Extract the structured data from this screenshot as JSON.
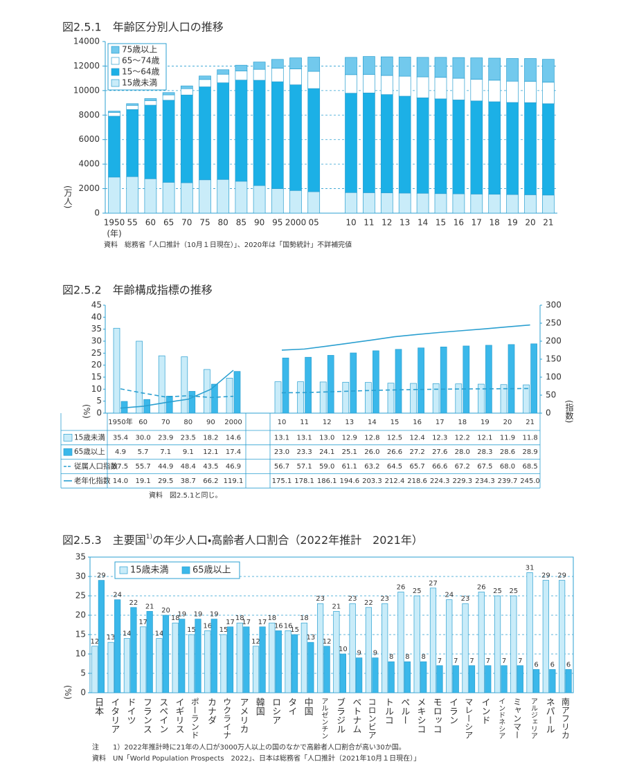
{
  "chart_data": [
    {
      "type": "bar",
      "stacked": true,
      "title": "図2.5.1　年齢区分別人口の推移",
      "ylabel": "(万人)",
      "xlabel": "(年)",
      "categories": [
        "1950",
        "55",
        "60",
        "65",
        "70",
        "75",
        "80",
        "85",
        "90",
        "95",
        "2000",
        "05",
        "10",
        "11",
        "12",
        "13",
        "14",
        "15",
        "16",
        "17",
        "18",
        "19",
        "20",
        "21"
      ],
      "series": [
        {
          "name": "15歳未満",
          "color": "#c9ecf9",
          "values": [
            2943,
            2980,
            2807,
            2517,
            2482,
            2722,
            2751,
            2603,
            2249,
            2001,
            1847,
            1752,
            1680,
            1671,
            1655,
            1639,
            1623,
            1595,
            1578,
            1559,
            1542,
            1521,
            1503,
            1478
          ]
        },
        {
          "name": "15～64歳",
          "color": "#1cb0e6",
          "values": [
            4966,
            5473,
            6000,
            6693,
            7157,
            7581,
            7883,
            8251,
            8590,
            8717,
            8622,
            8409,
            8103,
            8134,
            8018,
            7901,
            7785,
            7728,
            7656,
            7596,
            7545,
            7507,
            7509,
            7450
          ]
        },
        {
          "name": "65～74歳",
          "color": "#ffffff",
          "values": [
            309,
            339,
            375,
            437,
            516,
            602,
            699,
            744,
            892,
            1109,
            1301,
            1407,
            1517,
            1504,
            1560,
            1630,
            1708,
            1755,
            1768,
            1767,
            1760,
            1740,
            1742,
            1754
          ]
        },
        {
          "name": "75歳以上",
          "color": "#72c9ed",
          "values": [
            106,
            139,
            163,
            189,
            224,
            284,
            366,
            471,
            597,
            717,
            900,
            1160,
            1407,
            1471,
            1519,
            1560,
            1592,
            1632,
            1691,
            1748,
            1798,
            1849,
            1860,
            1867
          ]
        }
      ],
      "ylim": [
        0,
        14000
      ],
      "yticks": [
        0,
        2000,
        4000,
        6000,
        8000,
        10000,
        12000,
        14000
      ],
      "grid": true,
      "legend": "upper left",
      "source": "資料　総務省「人口推計（10月１日現在）」、2020年は「国勢統計」不詳補完値"
    },
    {
      "type": "bar",
      "title": "図2.5.2　年齢構成指標の推移",
      "ylabel": "(%)",
      "y2label": "(指数)",
      "categories": [
        "1950年",
        "60",
        "70",
        "80",
        "90",
        "2000",
        "10",
        "11",
        "12",
        "13",
        "14",
        "15",
        "16",
        "17",
        "18",
        "19",
        "20",
        "21"
      ],
      "series": [
        {
          "name": "15歳未満",
          "color": "#c9ecf9",
          "values": [
            35.4,
            30.0,
            23.9,
            23.5,
            18.2,
            14.6,
            13.1,
            13.1,
            13.0,
            12.9,
            12.8,
            12.5,
            12.4,
            12.3,
            12.2,
            12.1,
            11.9,
            11.8
          ],
          "value_labels": [
            "35.4",
            "30.0",
            "23.9",
            "23.5",
            "18.2",
            "14.6",
            "13.1",
            "13.1",
            "13.0",
            "12.9",
            "12.8",
            "12.5",
            "12.4",
            "12.3",
            "12.2",
            "12.1",
            "11.9",
            "11.8"
          ]
        },
        {
          "name": "65歳以上",
          "color": "#3bb8ea",
          "values": [
            4.9,
            5.7,
            7.1,
            9.1,
            12.1,
            17.4,
            23.0,
            23.3,
            24.1,
            25.1,
            26.0,
            26.6,
            27.2,
            27.6,
            28.0,
            28.3,
            28.6,
            28.9
          ],
          "value_labels": [
            "4.9",
            "5.7",
            "7.1",
            "9.1",
            "12.1",
            "17.4",
            "23.0",
            "23.3",
            "24.1",
            "25.1",
            "26.0",
            "26.6",
            "27.2",
            "27.6",
            "28.0",
            "28.3",
            "28.6",
            "28.9"
          ]
        },
        {
          "name": "従属人口指数",
          "type": "line",
          "dash": true,
          "axis": "y2",
          "color": "#2a9fd0",
          "values": [
            67.5,
            55.7,
            44.9,
            48.4,
            43.5,
            46.9,
            56.7,
            57.1,
            59.0,
            61.1,
            63.2,
            64.5,
            65.7,
            66.6,
            67.2,
            67.5,
            68.0,
            68.5
          ],
          "value_labels": [
            "67.5",
            "55.7",
            "44.9",
            "48.4",
            "43.5",
            "46.9",
            "56.7",
            "57.1",
            "59.0",
            "61.1",
            "63.2",
            "64.5",
            "65.7",
            "66.6",
            "67.2",
            "67.5",
            "68.0",
            "68.5"
          ]
        },
        {
          "name": "老年化指数",
          "type": "line",
          "axis": "y2",
          "color": "#2a9fd0",
          "values": [
            14.0,
            19.1,
            29.5,
            38.7,
            66.2,
            119.1,
            175.1,
            178.1,
            186.1,
            194.6,
            203.3,
            212.4,
            218.6,
            224.3,
            229.3,
            234.3,
            239.7,
            245.0
          ],
          "value_labels": [
            "14.0",
            "19.1",
            "29.5",
            "38.7",
            "66.2",
            "119.1",
            "175.1",
            "178.1",
            "186.1",
            "194.6",
            "203.3",
            "212.4",
            "218.6",
            "224.3",
            "229.3",
            "234.3",
            "239.7",
            "245.0"
          ]
        }
      ],
      "ylim": [
        0,
        45
      ],
      "yticks": [
        0,
        5,
        10,
        15,
        20,
        25,
        30,
        35,
        40,
        45
      ],
      "y2lim": [
        0,
        300
      ],
      "y2ticks": [
        0,
        50,
        100,
        150,
        200,
        250,
        300
      ],
      "source": "資料　図2.5.1と同じ。"
    },
    {
      "type": "bar",
      "title": "図2.5.3　主要国",
      "title_note": "1)",
      "title_rest": "の年少人口・高齢者人口割合（2022年推計　2021年）",
      "ylabel": "(%)",
      "categories": [
        "日本",
        "イタリア",
        "ドイツ",
        "フランス",
        "スペイン",
        "イギリス",
        "ポーランド",
        "カナダ",
        "ウクライナ",
        "アメリカ",
        "韓国",
        "ロシア",
        "タイ",
        "中国",
        "アルゼンチン",
        "ブラジル",
        "ベトナム",
        "コロンビア",
        "トルコ",
        "ペルー",
        "メキシコ",
        "モロッコ",
        "イラン",
        "マレーシア",
        "インド",
        "インドネシア",
        "ミャンマー",
        "アルジェリア",
        "ネパール",
        "南アフリカ"
      ],
      "series": [
        {
          "name": "15歳未満",
          "color": "#c9ecf9",
          "values": [
            12,
            13,
            14,
            17,
            14,
            18,
            15,
            16,
            15,
            18,
            12,
            18,
            16,
            18,
            23,
            21,
            23,
            22,
            23,
            26,
            25,
            27,
            24,
            23,
            26,
            25,
            25,
            31,
            29,
            29
          ]
        },
        {
          "name": "65歳以上",
          "color": "#3bb8ea",
          "values": [
            29,
            24,
            22,
            21,
            20,
            19,
            19,
            19,
            17,
            17,
            17,
            16,
            15,
            13,
            12,
            10,
            9,
            9,
            8,
            8,
            8,
            7,
            7,
            7,
            7,
            7,
            7,
            6,
            6,
            6
          ]
        }
      ],
      "ylim": [
        0,
        35
      ],
      "yticks": [
        0,
        5,
        10,
        15,
        20,
        25,
        30,
        35
      ],
      "grid": true,
      "legend": "upper left",
      "note": "注　　1）2022年推計時に21年の人口が3000万人以上の国のなかで高齢者人口割合が高い30か国。",
      "source": "資料　UN「World Population Prospects　2022」、日本は総務省「人口推計（2021年10月１日現在）」"
    }
  ]
}
